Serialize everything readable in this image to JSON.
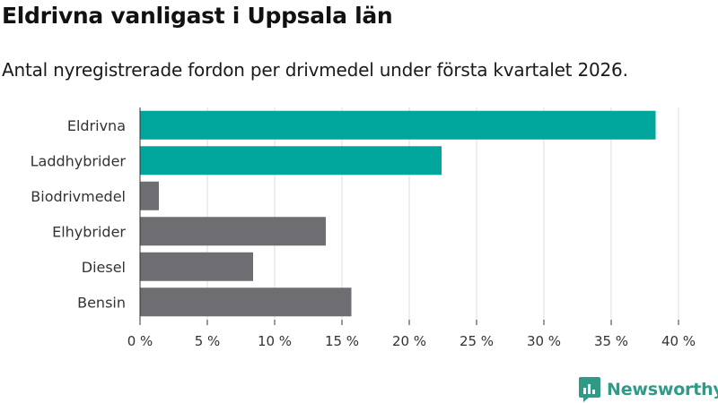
{
  "header": {
    "title": "Eldrivna vanligast i Uppsala län",
    "subtitle": "Antal nyregistrerade fordon per drivmedel under första kvartalet 2026."
  },
  "chart_data": {
    "type": "bar",
    "orientation": "horizontal",
    "title": "Eldrivna vanligast i Uppsala län",
    "subtitle": "Antal nyregistrerade fordon per drivmedel under första kvartalet 2026.",
    "categories": [
      "Eldrivna",
      "Laddhybrider",
      "Biodrivmedel",
      "Elhybrider",
      "Diesel",
      "Bensin"
    ],
    "values": [
      38.3,
      22.4,
      1.4,
      13.8,
      8.4,
      15.7
    ],
    "unit": "%",
    "highlighted": [
      true,
      true,
      false,
      false,
      false,
      false
    ],
    "xlim": [
      0,
      40
    ],
    "xticks": [
      0,
      5,
      10,
      15,
      20,
      25,
      30,
      35,
      40
    ],
    "xtick_labels": [
      "0 %",
      "5 %",
      "10 %",
      "15 %",
      "20 %",
      "25 %",
      "30 %",
      "35 %",
      "40 %"
    ],
    "xlabel": "",
    "ylabel": "",
    "grid": "vertical",
    "colors": {
      "highlight": "#00a59b",
      "default": "#6e6d72"
    }
  },
  "branding": {
    "name": "Newsworthy",
    "color": "#2f9b87",
    "icon": "newsworthy-logo-icon"
  }
}
